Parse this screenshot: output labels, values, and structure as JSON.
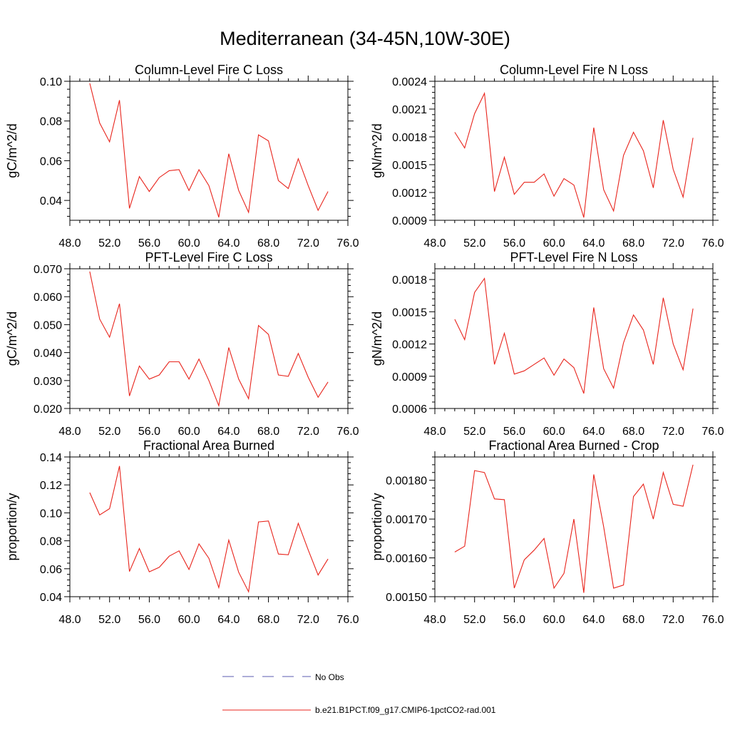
{
  "figure": {
    "title": "Mediterranean (34-45N,10W-30E)"
  },
  "legend": {
    "entries": [
      {
        "label": "No Obs",
        "color": "#5b5bb0",
        "style": "dashed"
      },
      {
        "label": "b.e21.B1PCT.f09_g17.CMIP6-1pctCO2-rad.001",
        "color": "#e8241c",
        "style": "solid"
      }
    ]
  },
  "chart_data": [
    {
      "type": "line",
      "title": "Column-Level Fire C Loss",
      "ylabel": "gC/m^2/d",
      "xlim": [
        48,
        76
      ],
      "ylim": [
        0.03,
        0.1
      ],
      "xticks": [
        "48.0",
        "52.0",
        "56.0",
        "60.0",
        "64.0",
        "68.0",
        "72.0",
        "76.0"
      ],
      "yticks": [
        0.04,
        0.06,
        0.08,
        0.1
      ],
      "ytick_labels": [
        "0.04",
        "0.06",
        "0.08",
        "0.10"
      ],
      "x": [
        50,
        51,
        52,
        53,
        54,
        55,
        56,
        57,
        58,
        59,
        60,
        61,
        62,
        63,
        64,
        65,
        66,
        67,
        68,
        69,
        70,
        71,
        72,
        73,
        74
      ],
      "series": [
        {
          "values": [
            0.099,
            0.079,
            0.0695,
            0.0905,
            0.036,
            0.052,
            0.0445,
            0.0515,
            0.055,
            0.0555,
            0.045,
            0.0555,
            0.0475,
            0.0315,
            0.0635,
            0.045,
            0.034,
            0.073,
            0.07,
            0.05,
            0.046,
            0.061,
            0.0475,
            0.035,
            0.0445
          ],
          "color": "#e8241c"
        }
      ]
    },
    {
      "type": "line",
      "title": "Column-Level Fire N Loss",
      "ylabel": "gN/m^2/d",
      "xlim": [
        48,
        76
      ],
      "ylim": [
        0.0009,
        0.0024
      ],
      "xticks": [
        "48.0",
        "52.0",
        "56.0",
        "60.0",
        "64.0",
        "68.0",
        "72.0",
        "76.0"
      ],
      "yticks": [
        0.0009,
        0.0012,
        0.0015,
        0.0018,
        0.0021,
        0.0024
      ],
      "ytick_labels": [
        "0.0009",
        "0.0012",
        "0.0015",
        "0.0018",
        "0.0021",
        "0.0024"
      ],
      "x": [
        50,
        51,
        52,
        53,
        54,
        55,
        56,
        57,
        58,
        59,
        60,
        61,
        62,
        63,
        64,
        65,
        66,
        67,
        68,
        69,
        70,
        71,
        72,
        73,
        74
      ],
      "series": [
        {
          "values": [
            0.00185,
            0.00168,
            0.00205,
            0.00227,
            0.00121,
            0.00158,
            0.00118,
            0.00131,
            0.00131,
            0.0014,
            0.00116,
            0.00135,
            0.00128,
            0.00093,
            0.0019,
            0.00123,
            0.001,
            0.0016,
            0.00185,
            0.00165,
            0.00125,
            0.00198,
            0.00145,
            0.00115,
            0.00179
          ],
          "color": "#e8241c"
        }
      ]
    },
    {
      "type": "line",
      "title": "PFT-Level Fire C Loss",
      "ylabel": "gC/m^2/d",
      "xlim": [
        48,
        76
      ],
      "ylim": [
        0.02,
        0.07
      ],
      "xticks": [
        "48.0",
        "52.0",
        "56.0",
        "60.0",
        "64.0",
        "68.0",
        "72.0",
        "76.0"
      ],
      "yticks": [
        0.02,
        0.03,
        0.04,
        0.05,
        0.06,
        0.07
      ],
      "ytick_labels": [
        "0.020",
        "0.030",
        "0.040",
        "0.050",
        "0.060",
        "0.070"
      ],
      "x": [
        50,
        51,
        52,
        53,
        54,
        55,
        56,
        57,
        58,
        59,
        60,
        61,
        62,
        63,
        64,
        65,
        66,
        67,
        68,
        69,
        70,
        71,
        72,
        73,
        74
      ],
      "series": [
        {
          "values": [
            0.069,
            0.052,
            0.0455,
            0.0575,
            0.0245,
            0.0352,
            0.0305,
            0.032,
            0.0367,
            0.0367,
            0.0305,
            0.0377,
            0.03,
            0.021,
            0.0418,
            0.0305,
            0.0235,
            0.0497,
            0.0465,
            0.032,
            0.0315,
            0.0397,
            0.0312,
            0.024,
            0.0295
          ],
          "color": "#e8241c"
        }
      ]
    },
    {
      "type": "line",
      "title": "PFT-Level Fire N Loss",
      "ylabel": "gN/m^2/d",
      "xlim": [
        48,
        76
      ],
      "ylim": [
        0.0006,
        0.0019
      ],
      "xticks": [
        "48.0",
        "52.0",
        "56.0",
        "60.0",
        "64.0",
        "68.0",
        "72.0",
        "76.0"
      ],
      "yticks": [
        0.0006,
        0.0009,
        0.0012,
        0.0015,
        0.0018
      ],
      "ytick_labels": [
        "0.0006",
        "0.0009",
        "0.0012",
        "0.0015",
        "0.0018"
      ],
      "x": [
        50,
        51,
        52,
        53,
        54,
        55,
        56,
        57,
        58,
        59,
        60,
        61,
        62,
        63,
        64,
        65,
        66,
        67,
        68,
        69,
        70,
        71,
        72,
        73,
        74
      ],
      "series": [
        {
          "values": [
            0.00143,
            0.00124,
            0.00168,
            0.00181,
            0.00101,
            0.0013,
            0.00092,
            0.00095,
            0.00101,
            0.00107,
            0.00091,
            0.00106,
            0.00098,
            0.00074,
            0.00154,
            0.00097,
            0.00079,
            0.00121,
            0.00147,
            0.00133,
            0.00101,
            0.00163,
            0.0012,
            0.00096,
            0.00153
          ],
          "color": "#e8241c"
        }
      ]
    },
    {
      "type": "line",
      "title": "Fractional Area Burned",
      "ylabel": "proportion/y",
      "xlim": [
        48,
        76
      ],
      "ylim": [
        0.04,
        0.14
      ],
      "xticks": [
        "48.0",
        "52.0",
        "56.0",
        "60.0",
        "64.0",
        "68.0",
        "72.0",
        "76.0"
      ],
      "yticks": [
        0.04,
        0.06,
        0.08,
        0.1,
        0.12,
        0.14
      ],
      "ytick_labels": [
        "0.04",
        "0.06",
        "0.08",
        "0.10",
        "0.12",
        "0.14"
      ],
      "x": [
        50,
        51,
        52,
        53,
        54,
        55,
        56,
        57,
        58,
        59,
        60,
        61,
        62,
        63,
        64,
        65,
        66,
        67,
        68,
        69,
        70,
        71,
        72,
        73,
        74
      ],
      "series": [
        {
          "values": [
            0.1145,
            0.0985,
            0.103,
            0.1335,
            0.058,
            0.0745,
            0.0578,
            0.061,
            0.069,
            0.0728,
            0.0595,
            0.0778,
            0.0675,
            0.0465,
            0.0805,
            0.0575,
            0.0435,
            0.0935,
            0.0942,
            0.0705,
            0.07,
            0.0925,
            0.0735,
            0.0555,
            0.067
          ],
          "color": "#e8241c"
        }
      ]
    },
    {
      "type": "line",
      "title": "Fractional Area Burned - Crop",
      "ylabel": "proportion/y",
      "xlim": [
        48,
        76
      ],
      "ylim": [
        0.0015,
        0.00186
      ],
      "xticks": [
        "48.0",
        "52.0",
        "56.0",
        "60.0",
        "64.0",
        "68.0",
        "72.0",
        "76.0"
      ],
      "yticks": [
        0.0015,
        0.0016,
        0.0017,
        0.0018
      ],
      "ytick_labels": [
        "0.00150",
        "0.00160",
        "0.00170",
        "0.00180"
      ],
      "x": [
        50,
        51,
        52,
        53,
        54,
        55,
        56,
        57,
        58,
        59,
        60,
        61,
        62,
        63,
        64,
        65,
        66,
        67,
        68,
        69,
        70,
        71,
        72,
        73,
        74
      ],
      "series": [
        {
          "values": [
            0.001615,
            0.00163,
            0.001825,
            0.00182,
            0.001752,
            0.00175,
            0.001522,
            0.001595,
            0.00162,
            0.00165,
            0.001522,
            0.00156,
            0.0017,
            0.00151,
            0.001815,
            0.00168,
            0.001522,
            0.00153,
            0.001758,
            0.00179,
            0.0017,
            0.00182,
            0.001738,
            0.001733,
            0.00184
          ],
          "color": "#e8241c"
        }
      ]
    }
  ]
}
